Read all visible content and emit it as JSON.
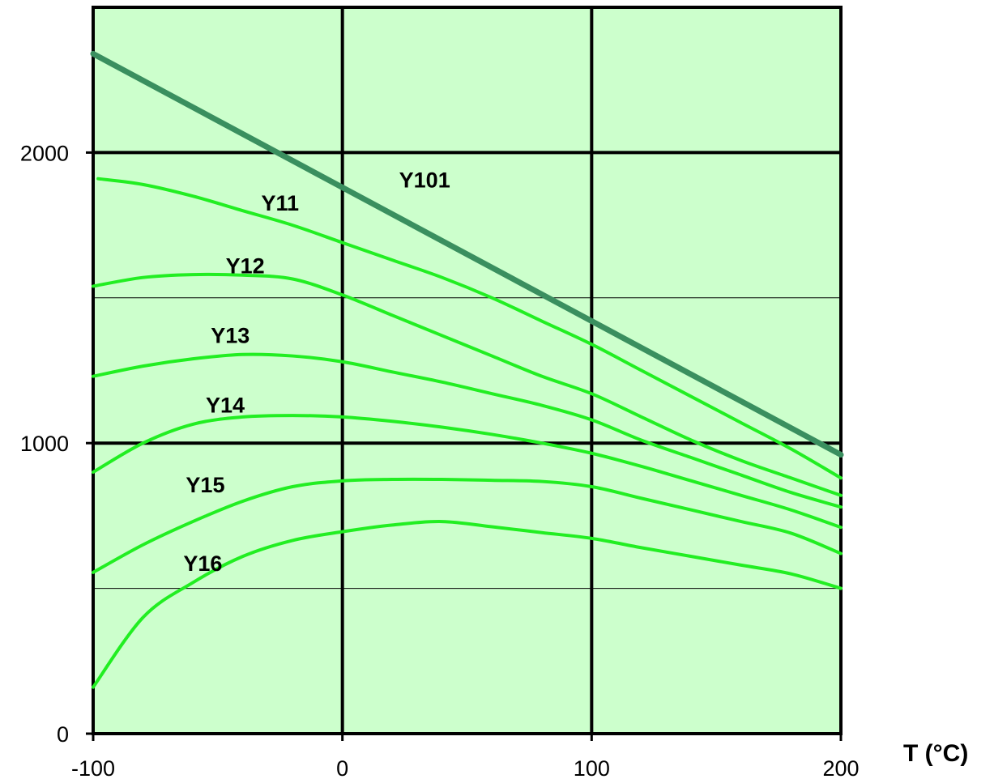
{
  "chart_data": {
    "type": "line",
    "title": "",
    "xlabel": "T (°C)",
    "ylabel": "",
    "xlim": [
      -100,
      200
    ],
    "ylim": [
      0,
      2500
    ],
    "grid": true,
    "x_ticks": [
      -100,
      0,
      100,
      200
    ],
    "y_ticks": [
      0,
      1000,
      2000
    ],
    "x_tick_labels": [
      "-100",
      "0",
      "100",
      "200"
    ],
    "y_tick_labels": [
      "0",
      "1000",
      "2000"
    ],
    "y_minor_gridlines": [
      500,
      1500
    ],
    "colors": {
      "plot_background": "#ccffcc",
      "curve": "#22ee22",
      "y101": "#3a8f5f",
      "grid": "#000000"
    },
    "series": [
      {
        "name": "Y101",
        "label_point": [
          33,
          1880
        ],
        "x": [
          -100,
          200
        ],
        "y": [
          2340,
          960
        ]
      },
      {
        "name": "Y11",
        "label_point": [
          -25,
          1800
        ],
        "x": [
          -98,
          -80,
          -60,
          -40,
          -20,
          0,
          20,
          40,
          60,
          80,
          100,
          120,
          140,
          160,
          180,
          200
        ],
        "y": [
          1910,
          1890,
          1850,
          1800,
          1750,
          1690,
          1630,
          1570,
          1500,
          1420,
          1340,
          1250,
          1160,
          1070,
          980,
          880
        ]
      },
      {
        "name": "Y12",
        "label_point": [
          -39,
          1585
        ],
        "x": [
          -100,
          -80,
          -60,
          -40,
          -20,
          0,
          20,
          40,
          60,
          80,
          100,
          120,
          140,
          160,
          180,
          200
        ],
        "y": [
          1540,
          1570,
          1580,
          1578,
          1565,
          1510,
          1440,
          1370,
          1300,
          1230,
          1170,
          1090,
          1010,
          940,
          880,
          820
        ]
      },
      {
        "name": "Y13",
        "label_point": [
          -45,
          1345
        ],
        "x": [
          -100,
          -80,
          -60,
          -40,
          -20,
          0,
          20,
          40,
          60,
          80,
          100,
          120,
          140,
          160,
          180,
          200
        ],
        "y": [
          1230,
          1265,
          1290,
          1305,
          1300,
          1280,
          1245,
          1210,
          1170,
          1130,
          1080,
          1010,
          950,
          890,
          830,
          780
        ]
      },
      {
        "name": "Y14",
        "label_point": [
          -47,
          1105
        ],
        "x": [
          -100,
          -80,
          -60,
          -40,
          -20,
          0,
          20,
          40,
          60,
          80,
          100,
          120,
          140,
          160,
          180,
          200
        ],
        "y": [
          900,
          1000,
          1065,
          1090,
          1095,
          1090,
          1075,
          1055,
          1030,
          1000,
          965,
          920,
          870,
          820,
          770,
          710
        ]
      },
      {
        "name": "Y15",
        "label_point": [
          -55,
          830
        ],
        "x": [
          -100,
          -80,
          -60,
          -40,
          -20,
          0,
          20,
          40,
          60,
          80,
          100,
          120,
          140,
          160,
          180,
          200
        ],
        "y": [
          555,
          650,
          730,
          800,
          850,
          870,
          875,
          875,
          872,
          868,
          850,
          810,
          770,
          730,
          690,
          620
        ]
      },
      {
        "name": "Y16",
        "label_point": [
          -56,
          560
        ],
        "x": [
          -100,
          -80,
          -60,
          -40,
          -20,
          0,
          20,
          40,
          60,
          80,
          100,
          120,
          140,
          160,
          180,
          200
        ],
        "y": [
          160,
          400,
          520,
          610,
          665,
          695,
          718,
          730,
          712,
          692,
          672,
          640,
          610,
          580,
          550,
          500
        ]
      }
    ]
  }
}
